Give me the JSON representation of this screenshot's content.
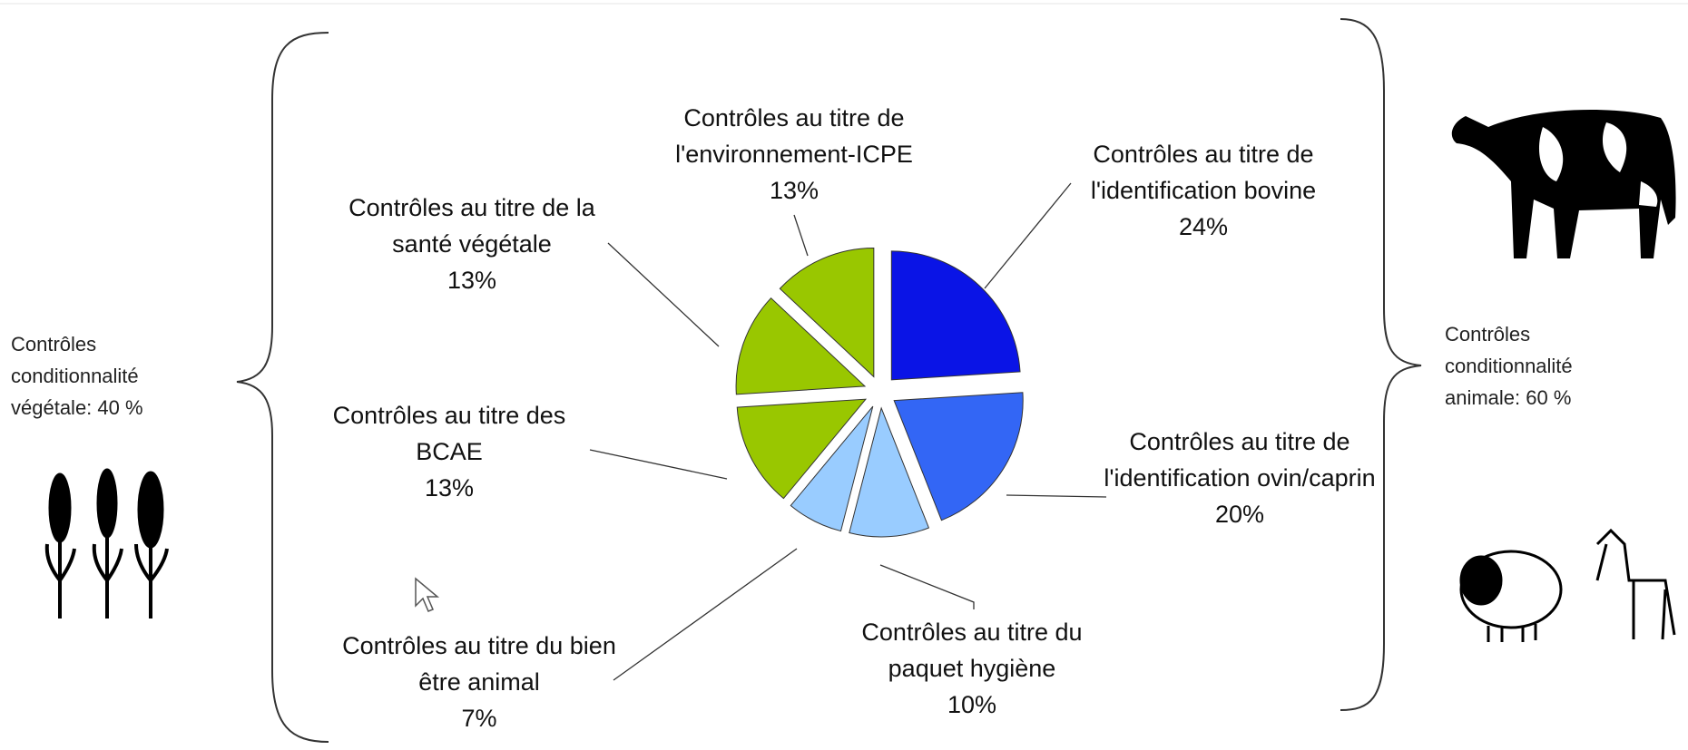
{
  "chart_data": {
    "type": "pie",
    "categories": [
      "Contrôles au titre de l'identification bovine",
      "Contrôles au titre de l'identification ovin/caprin",
      "Contrôles au titre du paquet hygiène",
      "Contrôles au titre du bien être animal",
      "Contrôles au titre des BCAE",
      "Contrôles au titre de la santé végétale",
      "Contrôles au titre de l'environnement-ICPE"
    ],
    "values": [
      24,
      20,
      10,
      7,
      13,
      13,
      13
    ],
    "value_labels": [
      "24%",
      "20%",
      "10%",
      "7%",
      "13%",
      "13%",
      "13%"
    ],
    "colors": [
      "#0a14e6",
      "#3366f5",
      "#99ccff",
      "#99ccff",
      "#99c700",
      "#99c700",
      "#99c700"
    ],
    "annotations": [
      "Contrôles conditionnalité végétale: 40 %",
      "Contrôles conditionnalité animale: 60 %"
    ]
  }
}
